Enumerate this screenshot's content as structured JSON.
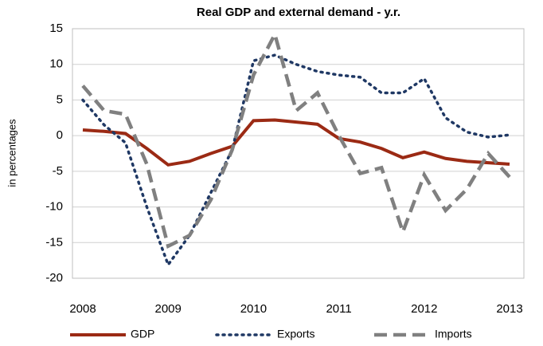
{
  "chart_data": {
    "type": "line",
    "title": "Real GDP  and external demand - y.r.",
    "y_label": "in percentages",
    "categories": [
      "2008",
      null,
      null,
      null,
      "2009",
      null,
      null,
      null,
      "2010",
      null,
      null,
      null,
      "2011",
      null,
      null,
      null,
      "2012",
      null,
      null,
      null,
      "2013"
    ],
    "series": [
      {
        "name": "GDP",
        "color": "#9b2a14",
        "dash": "solid",
        "values": [
          0.8,
          0.6,
          0.3,
          -1.8,
          -4.1,
          -3.6,
          -2.5,
          -1.5,
          2.1,
          2.2,
          1.9,
          1.6,
          -0.4,
          -0.9,
          -1.8,
          -3.1,
          -2.3,
          -3.2,
          -3.6,
          -3.8,
          -4.0
        ]
      },
      {
        "name": "Exports",
        "color": "#1f3864",
        "dash": "dotted",
        "values": [
          5.0,
          1.5,
          -1.0,
          -10,
          -18.1,
          -14,
          -8,
          -2,
          10.5,
          11.3,
          10,
          9,
          8.5,
          8.2,
          6,
          6,
          8,
          2.5,
          0.5,
          -0.2,
          0.1
        ]
      },
      {
        "name": "Imports",
        "color": "#808080",
        "dash": "dashed",
        "values": [
          7.0,
          3.5,
          3.0,
          -4,
          -15.5,
          -14,
          -9,
          -2,
          8.5,
          14.2,
          3.5,
          6,
          0,
          -5.3,
          -4.5,
          -13.5,
          -5.5,
          -10.5,
          -7.5,
          -2.5,
          -5.8
        ]
      }
    ],
    "ylim": [
      -20,
      15
    ],
    "yticks": [
      -20,
      -15,
      -10,
      -5,
      0,
      5,
      10,
      15
    ],
    "grid": true,
    "legend": "bottom"
  }
}
